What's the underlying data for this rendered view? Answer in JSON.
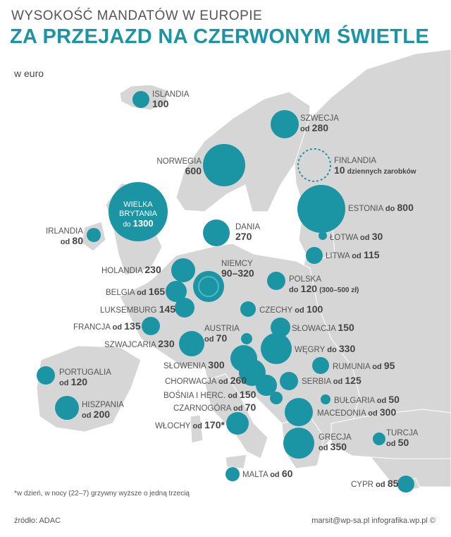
{
  "header": {
    "title_top": "WYSOKOŚĆ MANDATÓW W EUROPIE",
    "title_main": "ZA PRZEJAZD NA CZERWONYM ŚWIETLE",
    "unit": "w euro"
  },
  "colors": {
    "accent": "#1b95a4",
    "land": "#d6d6d6",
    "water": "#ffffff",
    "text": "#555555"
  },
  "countries": [
    {
      "name": "ISLANDIA",
      "value": "100"
    },
    {
      "name": "SZWECJA",
      "prefix": "od",
      "value": "280"
    },
    {
      "name": "FINLANDIA",
      "value": "10",
      "note": "dziennych zarobków"
    },
    {
      "name": "NORWEGIA",
      "value": "600"
    },
    {
      "name": "WIELKA BRYTANIA",
      "prefix": "do",
      "value": "1300"
    },
    {
      "name": "ESTONIA",
      "prefix": "do",
      "value": "800"
    },
    {
      "name": "IRLANDIA",
      "prefix": "od",
      "value": "80"
    },
    {
      "name": "DANIA",
      "value": "270"
    },
    {
      "name": "ŁOTWA",
      "prefix": "od",
      "value": "30"
    },
    {
      "name": "LITWA",
      "prefix": "od",
      "value": "115"
    },
    {
      "name": "HOLANDIA",
      "value": "230"
    },
    {
      "name": "NIEMCY",
      "value": "90–320"
    },
    {
      "name": "POLSKA",
      "prefix": "do",
      "value": "120",
      "note": "(300–500 zł)"
    },
    {
      "name": "BELGIA",
      "prefix": "od",
      "value": "165"
    },
    {
      "name": "LUKSEMBURG",
      "value": "145"
    },
    {
      "name": "CZECHY",
      "prefix": "od",
      "value": "100"
    },
    {
      "name": "FRANCJA",
      "prefix": "od",
      "value": "135"
    },
    {
      "name": "AUSTRIA",
      "prefix": "od",
      "value": "70"
    },
    {
      "name": "SŁOWACJA",
      "value": "150"
    },
    {
      "name": "SZWAJCARIA",
      "value": "230"
    },
    {
      "name": "WĘGRY",
      "prefix": "do",
      "value": "330"
    },
    {
      "name": "PORTUGALIA",
      "prefix": "od",
      "value": "120"
    },
    {
      "name": "SŁOWENIA",
      "value": "300"
    },
    {
      "name": "RUMUNIA",
      "prefix": "od",
      "value": "95"
    },
    {
      "name": "CHORWACJA",
      "prefix": "od",
      "value": "260"
    },
    {
      "name": "SERBIA",
      "prefix": "od",
      "value": "125"
    },
    {
      "name": "BOŚNIA I HERC.",
      "prefix": "od",
      "value": "150"
    },
    {
      "name": "BUŁGARIA",
      "prefix": "od",
      "value": "50"
    },
    {
      "name": "HISZPANIA",
      "prefix": "od",
      "value": "200"
    },
    {
      "name": "CZARNOGÓRA",
      "prefix": "od",
      "value": "70"
    },
    {
      "name": "MACEDONIA",
      "prefix": "od",
      "value": "300"
    },
    {
      "name": "WŁOCHY",
      "prefix": "od",
      "value": "170*"
    },
    {
      "name": "GRECJA",
      "prefix": "od",
      "value": "350"
    },
    {
      "name": "TURCJA",
      "prefix": "od",
      "value": "50"
    },
    {
      "name": "MALTA",
      "prefix": "od",
      "value": "60"
    },
    {
      "name": "CYPR",
      "prefix": "od",
      "value": "85"
    }
  ],
  "footnote": "*w dzień, w nocy (22–7) grzywny wyższe o jedną trzecią",
  "source": "źródło: ADAC",
  "credit": "marsit@wp-sa.pl infografika.wp.pl ©"
}
